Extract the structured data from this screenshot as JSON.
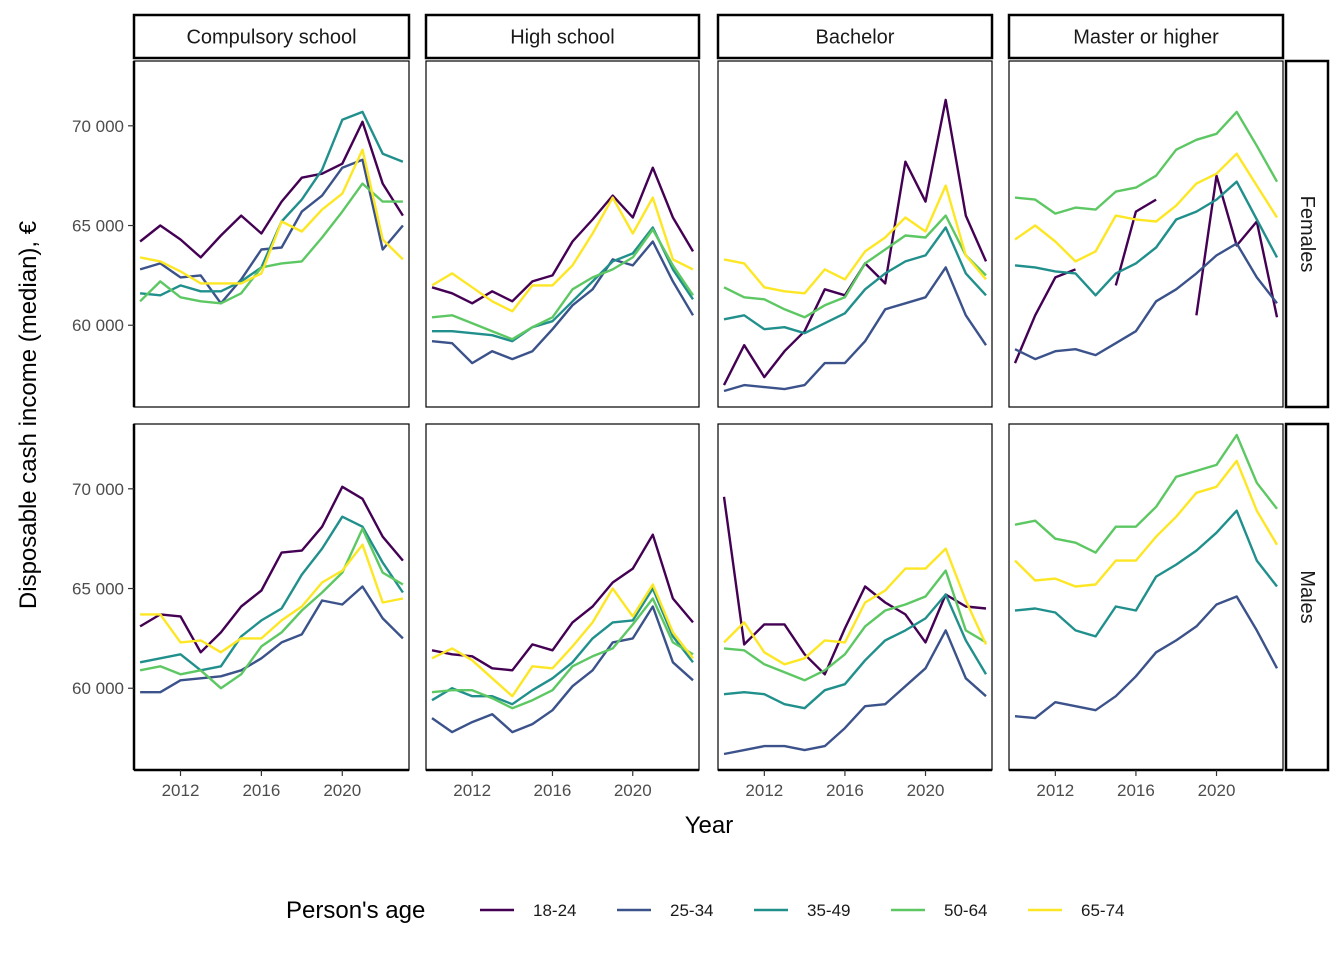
{
  "chart_data": {
    "type": "line",
    "ylabel": "Disposable cash income (median), €",
    "xlabel": "Year",
    "legend_title": "Person's age",
    "legend_position": "bottom",
    "grid": false,
    "xlim": [
      2009.7,
      2023.3
    ],
    "ylim": [
      55900,
      73250
    ],
    "x_ticks": [
      2012,
      2016,
      2020
    ],
    "y_ticks": [
      60000,
      65000,
      70000
    ],
    "x_tick_labels": [
      "2012",
      "2016",
      "2020"
    ],
    "y_tick_labels": [
      "60 000",
      "65 000",
      "70 000"
    ],
    "facet_columns": [
      "Compulsory school",
      "High school",
      "Bachelor",
      "Master or higher"
    ],
    "facet_rows": [
      "Females",
      "Males"
    ],
    "series_names": [
      "18-24",
      "25-34",
      "35-49",
      "50-64",
      "65-74"
    ],
    "colors": {
      "18-24": "#440154",
      "25-34": "#3B528B",
      "35-49": "#21908C",
      "50-64": "#5DC863",
      "65-74": "#FDE725"
    },
    "x": [
      2010,
      2011,
      2012,
      2013,
      2014,
      2015,
      2016,
      2017,
      2018,
      2019,
      2020,
      2021,
      2022,
      2023
    ],
    "panels": [
      {
        "row": "Females",
        "col": "Compulsory school",
        "series": [
          {
            "name": "18-24",
            "values": [
              64200,
              65000,
              64300,
              63400,
              64500,
              65500,
              64600,
              66200,
              67400,
              67600,
              68100,
              70200,
              67100,
              65500
            ]
          },
          {
            "name": "25-34",
            "values": [
              62800,
              63100,
              62400,
              62500,
              61100,
              62300,
              63800,
              63900,
              65700,
              66500,
              67900,
              68300,
              63800,
              65000
            ]
          },
          {
            "name": "35-49",
            "values": [
              61600,
              61500,
              62000,
              61700,
              61700,
              62200,
              62900,
              65200,
              66300,
              67800,
              70300,
              70700,
              68600,
              68200
            ]
          },
          {
            "name": "50-64",
            "values": [
              61200,
              62200,
              61400,
              61200,
              61100,
              61600,
              62900,
              63100,
              63200,
              64400,
              65700,
              67100,
              66200,
              66200
            ]
          },
          {
            "name": "65-74",
            "values": [
              63400,
              63200,
              62700,
              62100,
              62100,
              62100,
              62600,
              65200,
              64700,
              65800,
              66600,
              68800,
              64300,
              63300
            ]
          }
        ]
      },
      {
        "row": "Females",
        "col": "High school",
        "series": [
          {
            "name": "18-24",
            "values": [
              61900,
              61600,
              61100,
              61700,
              61200,
              62200,
              62500,
              64200,
              65300,
              66500,
              65400,
              67900,
              65400,
              63700
            ]
          },
          {
            "name": "25-34",
            "values": [
              59200,
              59100,
              58100,
              58700,
              58300,
              58700,
              59800,
              61000,
              61800,
              63300,
              63000,
              64200,
              62200,
              60500
            ]
          },
          {
            "name": "35-49",
            "values": [
              59700,
              59700,
              59600,
              59500,
              59200,
              59900,
              60200,
              61200,
              62200,
              63200,
              63600,
              64900,
              62800,
              61300
            ]
          },
          {
            "name": "50-64",
            "values": [
              60400,
              60500,
              60100,
              59700,
              59300,
              59900,
              60400,
              61800,
              62400,
              62800,
              63400,
              64800,
              63000,
              61500
            ]
          },
          {
            "name": "65-74",
            "values": [
              62000,
              62600,
              61900,
              61200,
              60700,
              62000,
              62000,
              63000,
              64600,
              66400,
              64600,
              66400,
              63300,
              62800
            ]
          }
        ]
      },
      {
        "row": "Females",
        "col": "Bachelor",
        "series": [
          {
            "name": "18-24",
            "values": [
              57000,
              59000,
              57400,
              58700,
              59700,
              61800,
              61500,
              63100,
              62100,
              68200,
              66200,
              71300,
              65500,
              63200
            ]
          },
          {
            "name": "25-34",
            "values": [
              56700,
              57000,
              56900,
              56800,
              57000,
              58100,
              58100,
              59200,
              60800,
              61100,
              61400,
              62900,
              60500,
              59000
            ]
          },
          {
            "name": "35-49",
            "values": [
              60300,
              60500,
              59800,
              59900,
              59600,
              60100,
              60600,
              61800,
              62600,
              63200,
              63500,
              64900,
              62600,
              61500
            ]
          },
          {
            "name": "50-64",
            "values": [
              61900,
              61400,
              61300,
              60800,
              60400,
              61000,
              61400,
              63100,
              63800,
              64500,
              64400,
              65500,
              63500,
              62500
            ]
          },
          {
            "name": "65-74",
            "values": [
              63300,
              63100,
              61900,
              61700,
              61600,
              62800,
              62300,
              63700,
              64400,
              65400,
              64700,
              67000,
              63500,
              62300
            ]
          }
        ]
      },
      {
        "row": "Females",
        "col": "Master or higher",
        "series": [
          {
            "name": "18-24",
            "values": [
              58100,
              60500,
              62400,
              62800,
              null,
              62000,
              65700,
              66300,
              null,
              60500,
              67500,
              64000,
              65200,
              60400
            ]
          },
          {
            "name": "25-34",
            "values": [
              58800,
              58300,
              58700,
              58800,
              58500,
              59100,
              59700,
              61200,
              61800,
              62600,
              63500,
              64100,
              62400,
              61100
            ]
          },
          {
            "name": "35-49",
            "values": [
              63000,
              62900,
              62700,
              62600,
              61500,
              62600,
              63100,
              63900,
              65300,
              65700,
              66300,
              67200,
              65300,
              63400
            ]
          },
          {
            "name": "50-64",
            "values": [
              66400,
              66300,
              65600,
              65900,
              65800,
              66700,
              66900,
              67500,
              68800,
              69300,
              69600,
              70700,
              69000,
              67200
            ]
          },
          {
            "name": "65-74",
            "values": [
              64300,
              65000,
              64200,
              63200,
              63700,
              65500,
              65300,
              65200,
              66000,
              67100,
              67600,
              68600,
              67000,
              65400
            ]
          }
        ]
      },
      {
        "row": "Males",
        "col": "Compulsory school",
        "series": [
          {
            "name": "18-24",
            "values": [
              63100,
              63700,
              63600,
              61800,
              62800,
              64100,
              64900,
              66800,
              66900,
              68100,
              70100,
              69500,
              67600,
              66400
            ]
          },
          {
            "name": "25-34",
            "values": [
              59800,
              59800,
              60400,
              60500,
              60600,
              60900,
              61500,
              62300,
              62700,
              64400,
              64200,
              65100,
              63500,
              62500
            ]
          },
          {
            "name": "35-49",
            "values": [
              61300,
              61500,
              61700,
              60900,
              61100,
              62600,
              63400,
              64000,
              65700,
              67000,
              68600,
              68100,
              66300,
              64800
            ]
          },
          {
            "name": "50-64",
            "values": [
              60900,
              61100,
              60700,
              60900,
              60000,
              60700,
              62100,
              62800,
              63900,
              64800,
              65800,
              68000,
              65800,
              65200
            ]
          },
          {
            "name": "65-74",
            "values": [
              63700,
              63700,
              62300,
              62400,
              61800,
              62500,
              62500,
              63400,
              64100,
              65300,
              65900,
              67200,
              64300,
              64500
            ]
          }
        ]
      },
      {
        "row": "Males",
        "col": "High school",
        "series": [
          {
            "name": "18-24",
            "values": [
              61900,
              61700,
              61600,
              61000,
              60900,
              62200,
              61900,
              63300,
              64100,
              65300,
              66000,
              67700,
              64500,
              63300
            ]
          },
          {
            "name": "25-34",
            "values": [
              58500,
              57800,
              58300,
              58700,
              57800,
              58200,
              58900,
              60100,
              60900,
              62300,
              62500,
              64100,
              61300,
              60400
            ]
          },
          {
            "name": "35-49",
            "values": [
              59400,
              60000,
              59600,
              59600,
              59200,
              59900,
              60500,
              61300,
              62500,
              63300,
              63400,
              65000,
              62600,
              61300
            ]
          },
          {
            "name": "50-64",
            "values": [
              59800,
              59900,
              59900,
              59500,
              59000,
              59400,
              59900,
              61100,
              61600,
              62000,
              63200,
              64500,
              62300,
              61700
            ]
          },
          {
            "name": "65-74",
            "values": [
              61500,
              62000,
              61400,
              60500,
              59600,
              61100,
              61000,
              62100,
              63300,
              65000,
              63600,
              65200,
              62800,
              61500
            ]
          }
        ]
      },
      {
        "row": "Males",
        "col": "Bachelor",
        "series": [
          {
            "name": "18-24",
            "values": [
              69600,
              62200,
              63200,
              63200,
              61700,
              60700,
              63000,
              65100,
              64300,
              63700,
              62300,
              64700,
              64100,
              64000
            ]
          },
          {
            "name": "25-34",
            "values": [
              56700,
              56900,
              57100,
              57100,
              56900,
              57100,
              58000,
              59100,
              59200,
              60100,
              61000,
              62900,
              60500,
              59600
            ]
          },
          {
            "name": "35-49",
            "values": [
              59700,
              59800,
              59700,
              59200,
              59000,
              59900,
              60200,
              61400,
              62400,
              62900,
              63500,
              64700,
              62400,
              60700
            ]
          },
          {
            "name": "50-64",
            "values": [
              62000,
              61900,
              61200,
              60800,
              60400,
              60900,
              61700,
              63100,
              63900,
              64200,
              64600,
              65900,
              62900,
              62300
            ]
          },
          {
            "name": "65-74",
            "values": [
              62300,
              63300,
              61800,
              61200,
              61500,
              62400,
              62300,
              64300,
              64900,
              66000,
              66000,
              67000,
              64400,
              62200
            ]
          }
        ]
      },
      {
        "row": "Males",
        "col": "Master or higher",
        "series": [
          {
            "name": "25-34",
            "values": [
              58600,
              58500,
              59300,
              59100,
              58900,
              59600,
              60600,
              61800,
              62400,
              63100,
              64200,
              64600,
              62900,
              61000
            ]
          },
          {
            "name": "35-49",
            "values": [
              63900,
              64000,
              63800,
              62900,
              62600,
              64100,
              63900,
              65600,
              66200,
              66900,
              67800,
              68900,
              66400,
              65100
            ]
          },
          {
            "name": "50-64",
            "values": [
              68200,
              68400,
              67500,
              67300,
              66800,
              68100,
              68100,
              69100,
              70600,
              70900,
              71200,
              72700,
              70300,
              69000
            ]
          },
          {
            "name": "65-74",
            "values": [
              66400,
              65400,
              65500,
              65100,
              65200,
              66400,
              66400,
              67600,
              68600,
              69800,
              70100,
              71400,
              68900,
              67200
            ]
          }
        ]
      }
    ]
  }
}
